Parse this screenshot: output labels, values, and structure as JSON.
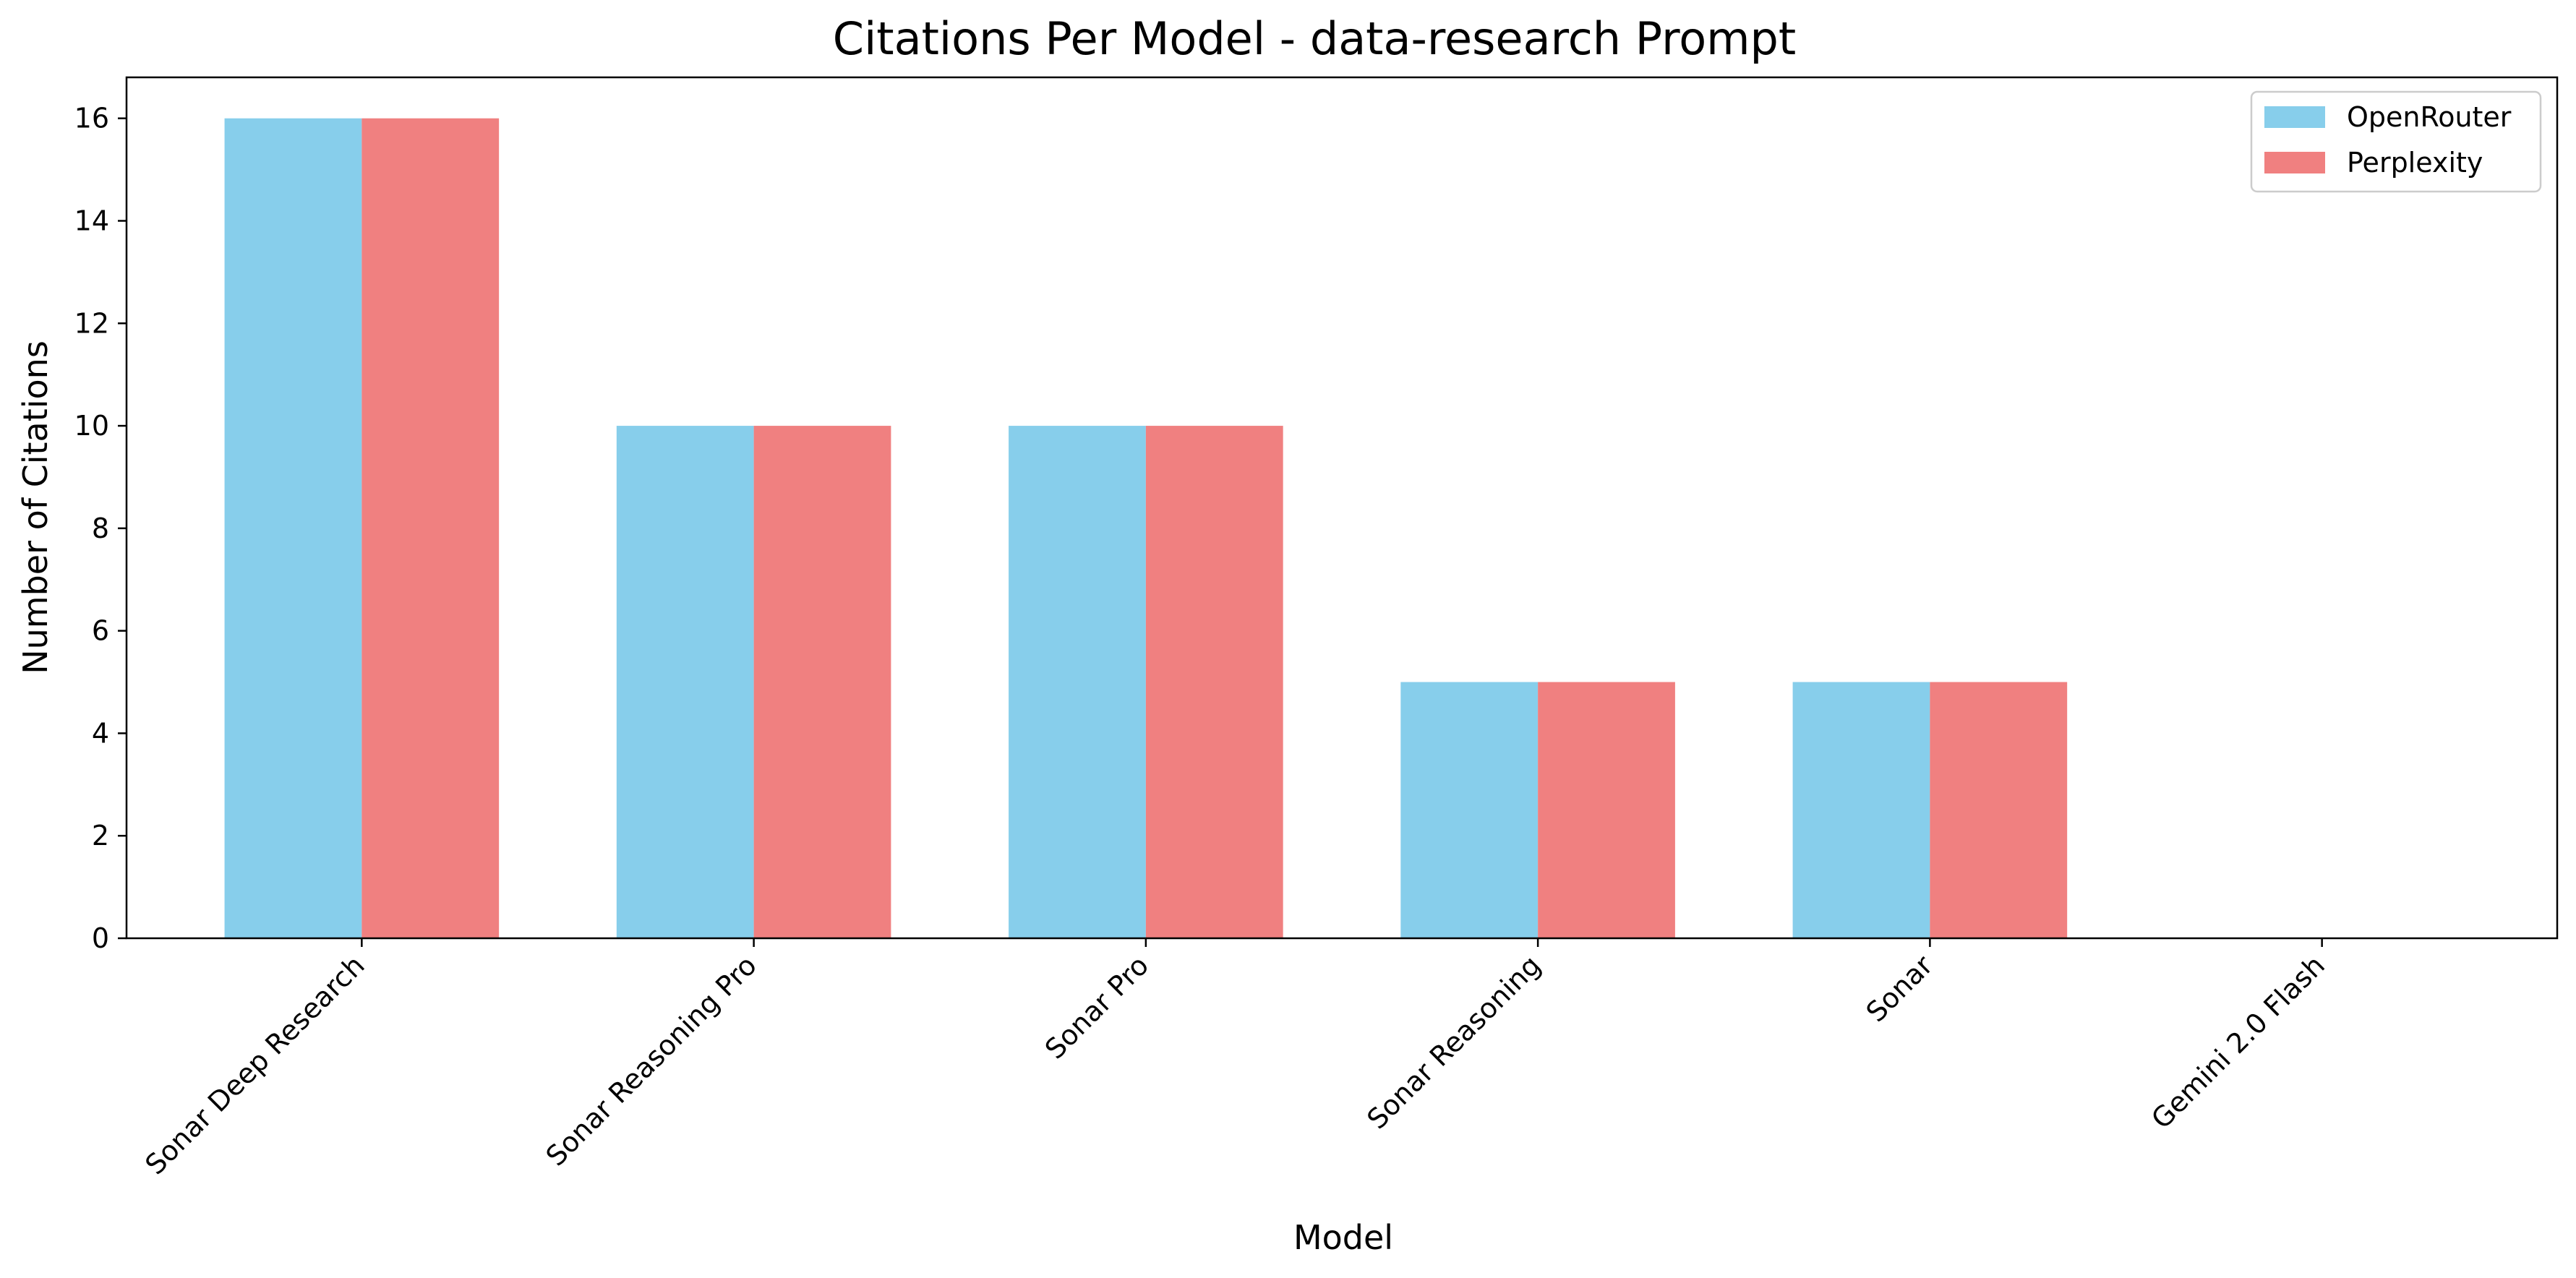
{
  "chart_data": {
    "type": "bar",
    "title": "Citations Per Model - data-research Prompt",
    "xlabel": "Model",
    "ylabel": "Number of Citations",
    "categories": [
      "Sonar Deep Research",
      "Sonar Reasoning Pro",
      "Sonar Pro",
      "Sonar Reasoning",
      "Sonar",
      "Gemini 2.0 Flash"
    ],
    "series": [
      {
        "name": "OpenRouter",
        "color": "#87CEEB",
        "values": [
          16,
          10,
          10,
          5,
          5,
          0
        ]
      },
      {
        "name": "Perplexity",
        "color": "#F08080",
        "values": [
          16,
          10,
          10,
          5,
          5,
          0
        ]
      }
    ],
    "ylim": [
      0,
      16.8
    ],
    "yticks": [
      0,
      2,
      4,
      6,
      8,
      10,
      12,
      14,
      16
    ],
    "grid": false,
    "legend": "top-right"
  }
}
